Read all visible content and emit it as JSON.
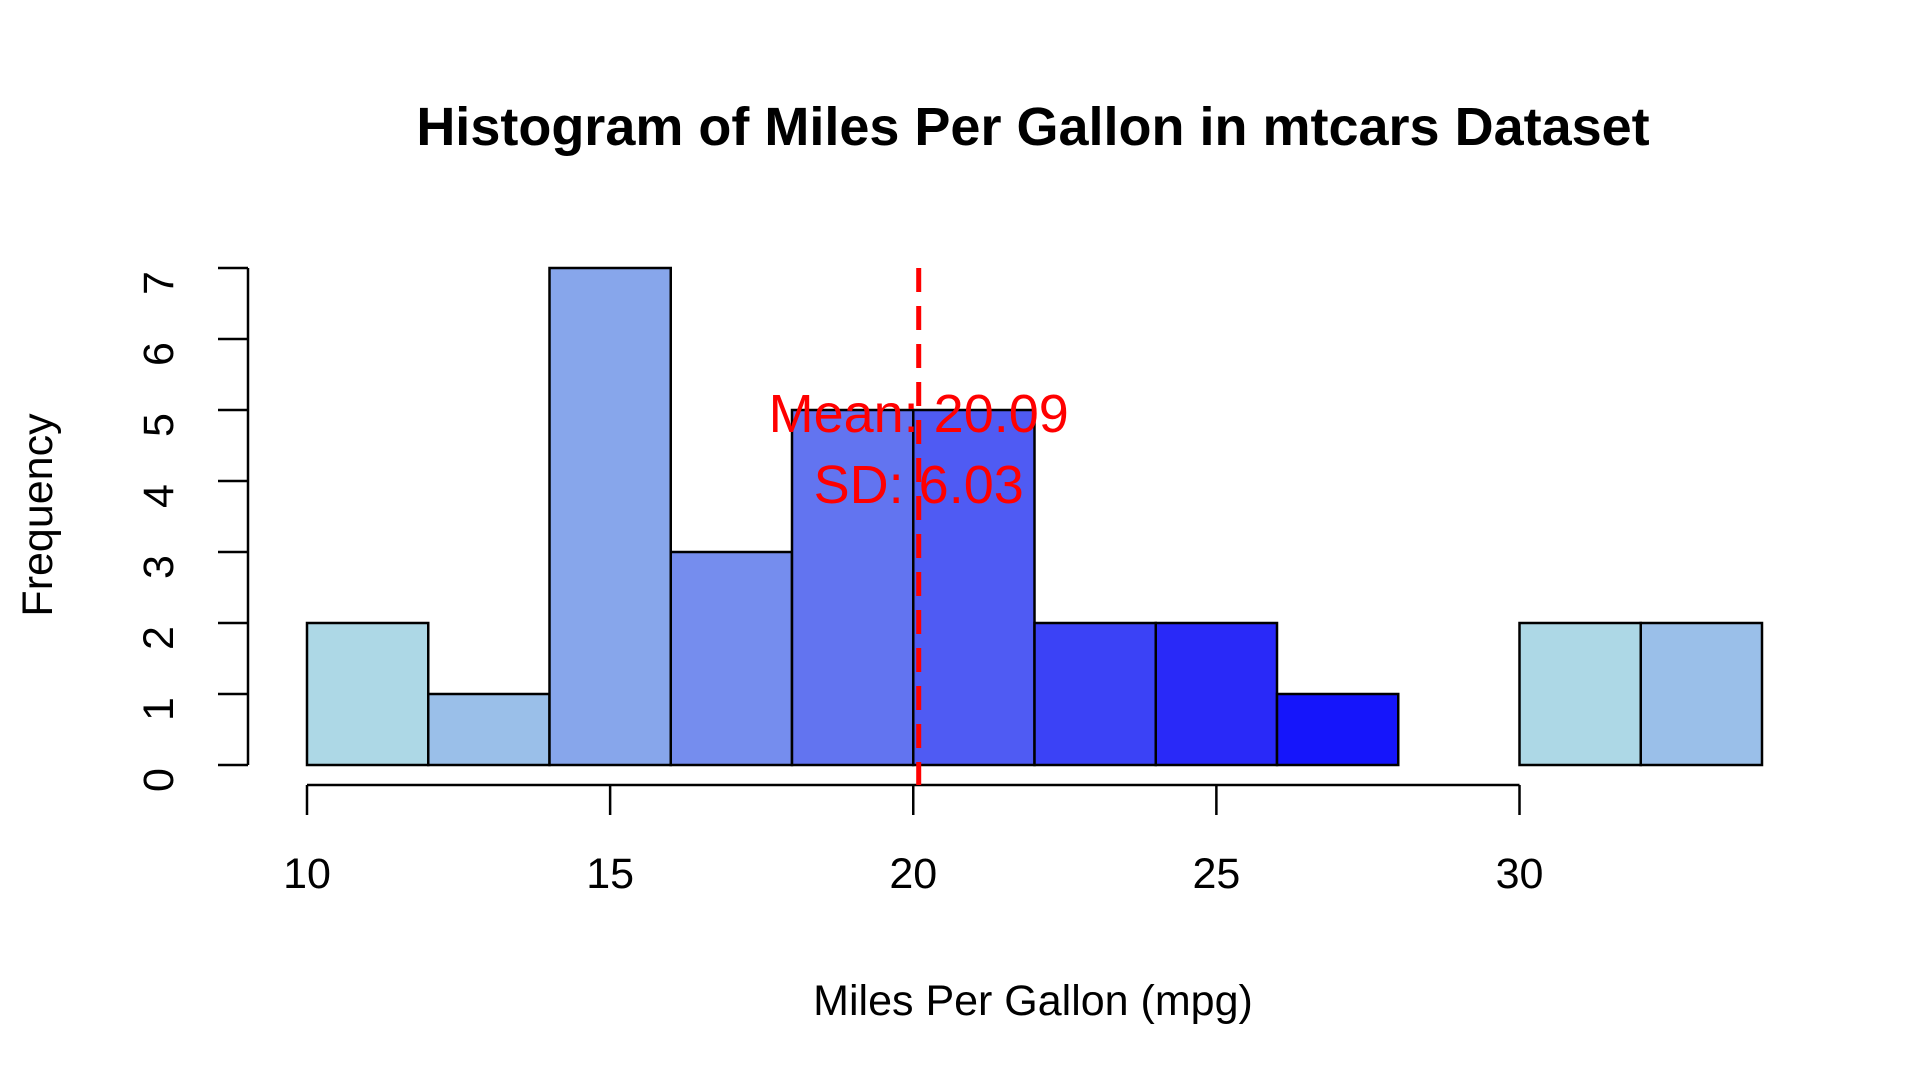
{
  "chart_data": {
    "type": "bar",
    "title": "Histogram of Miles Per Gallon in mtcars Dataset",
    "xlabel": "Miles Per Gallon (mpg)",
    "ylabel": "Frequency",
    "xlim": [
      10,
      34
    ],
    "ylim": [
      0,
      7
    ],
    "x_ticks": [
      10,
      15,
      20,
      25,
      30
    ],
    "x_tick_labels": [
      "10",
      "15",
      "20",
      "25",
      "30"
    ],
    "y_ticks": [
      0,
      1,
      2,
      3,
      4,
      5,
      6,
      7
    ],
    "y_tick_labels": [
      "0",
      "1",
      "2",
      "3",
      "4",
      "5",
      "6",
      "7"
    ],
    "grid": false,
    "bins": [
      {
        "start": 10,
        "end": 12,
        "count": 2,
        "color": "#ADD8E6"
      },
      {
        "start": 12,
        "end": 14,
        "count": 1,
        "color": "#9ABFE9"
      },
      {
        "start": 14,
        "end": 16,
        "count": 7,
        "color": "#87A6EB"
      },
      {
        "start": 16,
        "end": 18,
        "count": 3,
        "color": "#758DEE"
      },
      {
        "start": 18,
        "end": 20,
        "count": 5,
        "color": "#6274F0"
      },
      {
        "start": 20,
        "end": 22,
        "count": 5,
        "color": "#4F5BF3"
      },
      {
        "start": 22,
        "end": 24,
        "count": 2,
        "color": "#3B42F6"
      },
      {
        "start": 24,
        "end": 26,
        "count": 2,
        "color": "#2929F8"
      },
      {
        "start": 26,
        "end": 28,
        "count": 1,
        "color": "#1515FB"
      },
      {
        "start": 28,
        "end": 30,
        "count": 0,
        "color": "#0000FF"
      },
      {
        "start": 30,
        "end": 32,
        "count": 2,
        "color": "#ADD8E6"
      },
      {
        "start": 32,
        "end": 34,
        "count": 2,
        "color": "#9ABFE9"
      }
    ],
    "mean_line": {
      "value": 20.09,
      "color": "#FF0000",
      "style": "dashed"
    },
    "annotations": [
      {
        "text": "Mean: 20.09",
        "color": "#FF0000"
      },
      {
        "text": "SD: 6.03",
        "color": "#FF0000"
      }
    ]
  }
}
